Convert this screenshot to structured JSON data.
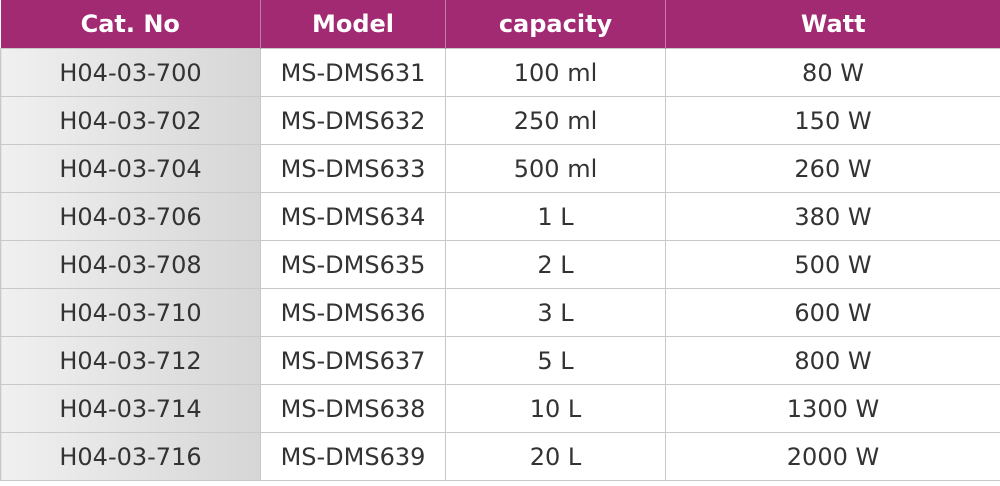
{
  "table": {
    "header": [
      "Cat. No",
      "Model",
      "capacity",
      "Watt"
    ],
    "rows": [
      [
        "H04-03-700",
        "MS-DMS631",
        "100 ml",
        "80 W"
      ],
      [
        "H04-03-702",
        "MS-DMS632",
        "250 ml",
        "150 W"
      ],
      [
        "H04-03-704",
        "MS-DMS633",
        "500 ml",
        "260 W"
      ],
      [
        "H04-03-706",
        "MS-DMS634",
        "1 L",
        "380 W"
      ],
      [
        "H04-03-708",
        "MS-DMS635",
        "2 L",
        "500 W"
      ],
      [
        "H04-03-710",
        "MS-DMS636",
        "3 L",
        "600 W"
      ],
      [
        "H04-03-712",
        "MS-DMS637",
        "5 L",
        "800 W"
      ],
      [
        "H04-03-714",
        "MS-DMS638",
        "10 L",
        "1300 W"
      ],
      [
        "H04-03-716",
        "MS-DMS639",
        "20 L",
        "2000 W"
      ]
    ]
  }
}
